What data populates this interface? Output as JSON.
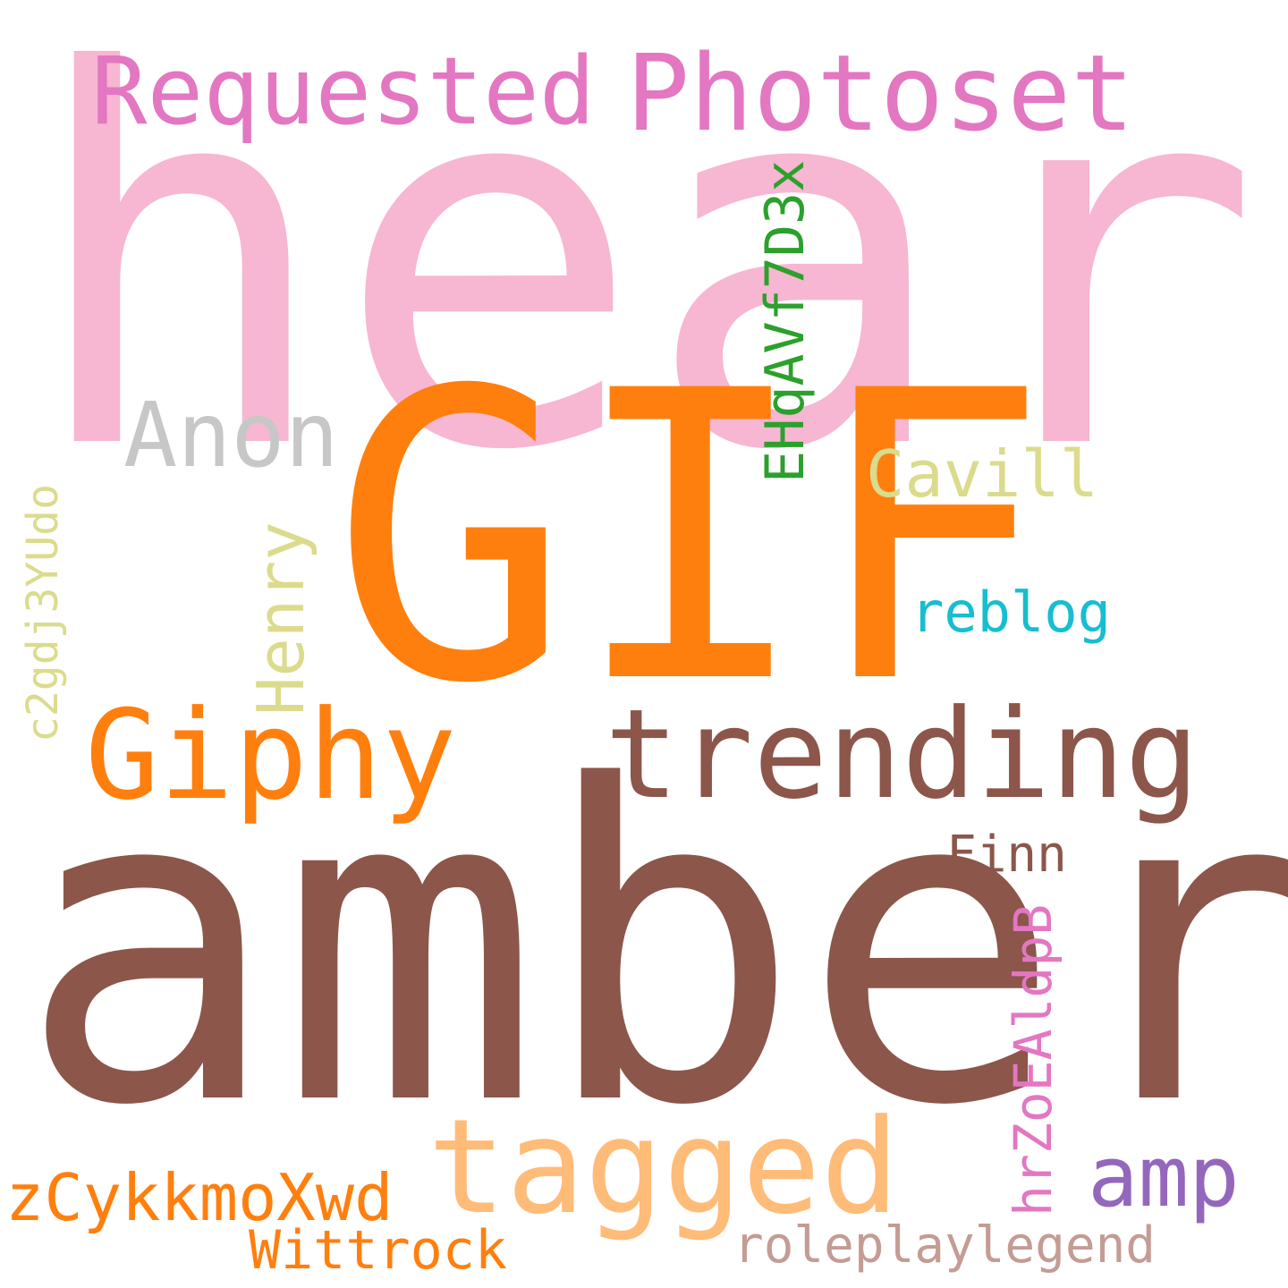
{
  "words": {
    "heard": {
      "text": "heard",
      "color": "#f7b6d2"
    },
    "gif": {
      "text": "GIF",
      "color": "#ff7f0e"
    },
    "amber": {
      "text": "amber",
      "color": "#8c564b"
    },
    "photoset": {
      "text": "Photoset",
      "color": "#e377c2"
    },
    "requested": {
      "text": "Requested",
      "color": "#e377c2"
    },
    "anon": {
      "text": "Anon",
      "color": "#c7c7c7"
    },
    "cavill": {
      "text": "Cavill",
      "color": "#dbdb8d"
    },
    "reblog": {
      "text": "reblog",
      "color": "#17becf"
    },
    "giphy": {
      "text": "Giphy",
      "color": "#ff7f0e"
    },
    "trending": {
      "text": "trending",
      "color": "#8c564b"
    },
    "finn": {
      "text": "Finn",
      "color": "#8c564b"
    },
    "tagged": {
      "text": "tagged",
      "color": "#ffbb78"
    },
    "amp": {
      "text": "amp",
      "color": "#9467bd"
    },
    "zcykkmoxwd": {
      "text": "zCykkmoXwd",
      "color": "#ff7f0e"
    },
    "roleplaylegend": {
      "text": "roleplaylegend",
      "color": "#c49c94"
    },
    "wittrock": {
      "text": "Wittrock",
      "color": "#ff7f0e"
    },
    "ehqavf7d3x": {
      "text": "EHqAVf7D3x",
      "color": "#2ca02c"
    },
    "henry": {
      "text": "Henry",
      "color": "#dbdb8d"
    },
    "c2gdj3yudo": {
      "text": "c2gdj3YUdo",
      "color": "#dbdb8d"
    },
    "hrzoealdpb": {
      "text": "hrZoEAldpB",
      "color": "#e377c2"
    }
  }
}
